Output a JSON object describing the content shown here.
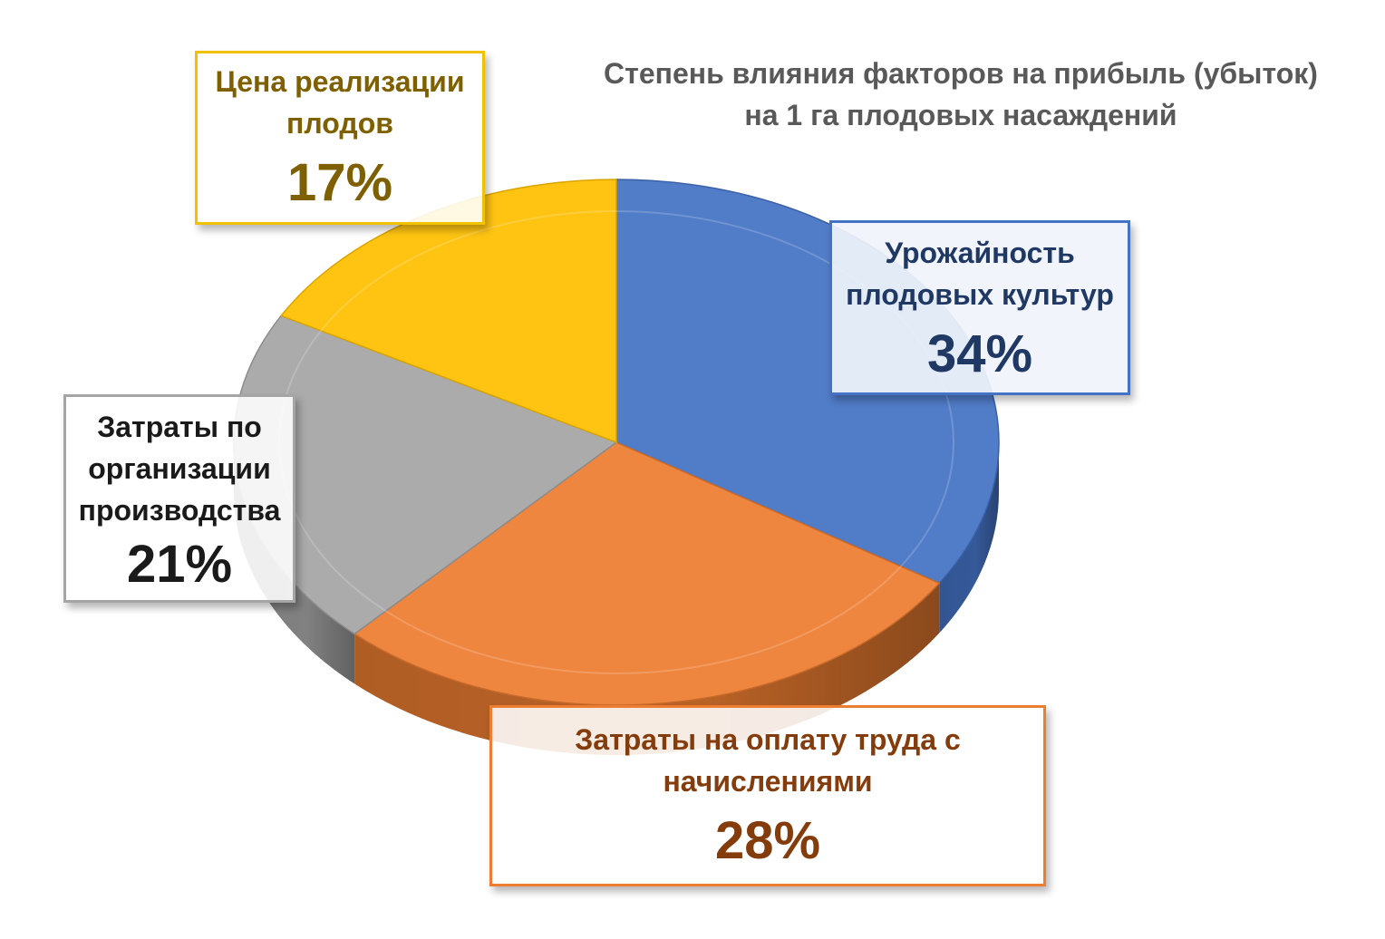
{
  "chart_data": {
    "type": "pie",
    "title": "Степень влияния факторов на прибыль (убыток)",
    "subtitle": "на 1 га плодовых насаждений",
    "slices": [
      {
        "label": "Урожайность плодовых культур",
        "value": 34,
        "display": "34%",
        "color": "#4472C4"
      },
      {
        "label": "Затраты на оплату труда с начислениями",
        "value": 28,
        "display": "28%",
        "color": "#ED7D31"
      },
      {
        "label": "Затраты по организации производства",
        "value": 21,
        "display": "21%",
        "color": "#A5A5A5"
      },
      {
        "label": "Цена реализации плодов",
        "value": 17,
        "display": "17%",
        "color": "#FFC000"
      }
    ],
    "legend": "none"
  }
}
